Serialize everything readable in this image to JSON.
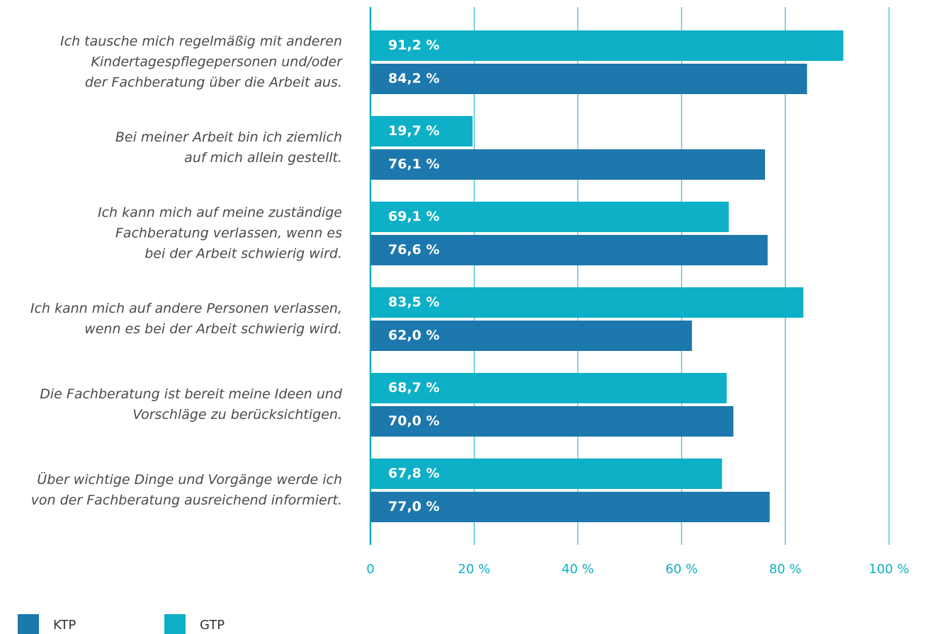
{
  "chart_data": {
    "type": "bar",
    "orientation": "horizontal",
    "categories": [
      [
        "Ich tausche mich regelmäßig mit anderen",
        "Kindertagespflegepersonen und/oder",
        "der Fachberatung über die Arbeit aus."
      ],
      [
        "Bei meiner Arbeit bin ich ziemlich",
        "auf mich allein gestellt."
      ],
      [
        "Ich kann mich auf meine zuständige",
        "Fachberatung verlassen, wenn es",
        "bei der Arbeit schwierig wird."
      ],
      [
        "Ich kann mich auf andere Personen verlassen,",
        "wenn es bei der Arbeit schwierig wird."
      ],
      [
        "Die Fachberatung ist bereit meine Ideen und",
        "Vorschläge zu berücksichtigen."
      ],
      [
        "Über wichtige Dinge und Vorgänge werde ich",
        "von der Fachberatung ausreichend informiert."
      ]
    ],
    "series": [
      {
        "name": "KTP",
        "color": "#1c78ad",
        "values": [
          84.2,
          76.1,
          76.6,
          62.0,
          70.0,
          77.0
        ],
        "value_labels": [
          "84,2 %",
          "76,1 %",
          "76,6 %",
          "62,0 %",
          "70,0 %",
          "77,0 %"
        ]
      },
      {
        "name": "GTP",
        "color": "#0db0c6",
        "values": [
          91.2,
          19.7,
          69.1,
          83.5,
          68.7,
          67.8
        ],
        "value_labels": [
          "91,2 %",
          "19,7 %",
          "69,1 %",
          "83,5 %",
          "68,7 %",
          "67,8 %"
        ]
      }
    ],
    "xlim": [
      0,
      100
    ],
    "xticks": [
      0,
      {
        "value": 20,
        "label": "20 %"
      },
      {
        "value": 40,
        "label": "40 %"
      },
      {
        "value": 60,
        "label": "60 %"
      },
      {
        "value": 80,
        "label": "80 %"
      },
      {
        "value": 100,
        "label": "100 %"
      }
    ],
    "grid": true
  }
}
